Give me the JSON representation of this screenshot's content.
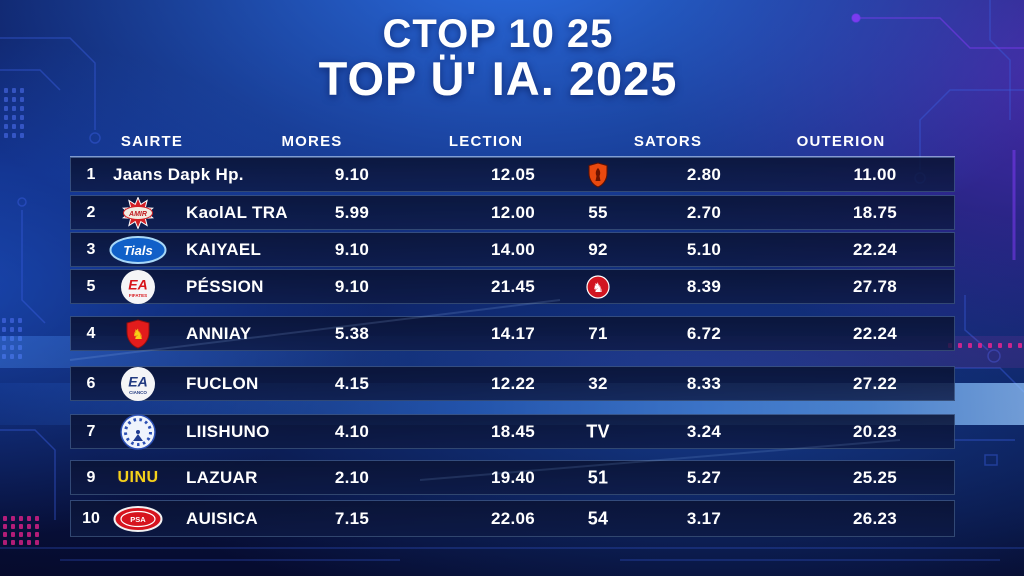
{
  "title": {
    "line1": "CTOP 10 25",
    "line2": "TOP Ü' IA. 2025"
  },
  "chart_data": {
    "type": "table",
    "title": "CTOP 10 25 — TOP Ü' IA. 2025",
    "columns": [
      "SAIRTE",
      "MORES",
      "LECTION",
      "SATORS",
      "OUTERION"
    ],
    "rows": [
      {
        "rank": "1",
        "logo": null,
        "name": "Jaans Dapk Hp.",
        "mores": "9.10",
        "lection": "12.05",
        "mid": {
          "icon": "red-shield-crest-icon"
        },
        "sators": "2.80",
        "outerion": "11.00"
      },
      {
        "rank": "2",
        "logo": {
          "icon": "red-star-badge-icon",
          "text": "AMIR"
        },
        "name": "KaolAL TRA",
        "mores": "5.99",
        "lection": "12.00",
        "mid": {
          "text": "55"
        },
        "sators": "2.70",
        "outerion": "18.75"
      },
      {
        "rank": "3",
        "logo": {
          "icon": "blue-oval-badge-icon",
          "text": "Tials"
        },
        "name": "KAIYAEL",
        "mores": "9.10",
        "lection": "14.00",
        "mid": {
          "text": "92"
        },
        "sators": "5.10",
        "outerion": "22.24"
      },
      {
        "rank": "5",
        "logo": {
          "icon": "ea-red-circle-icon",
          "text": "EA",
          "subtext": "FIFATES"
        },
        "name": "PÉSSION",
        "mores": "9.10",
        "lection": "21.45",
        "mid": {
          "icon": "red-circle-lion-icon"
        },
        "sators": "8.39",
        "outerion": "27.78"
      },
      {
        "rank": "4",
        "logo": {
          "icon": "red-shield-horse-icon",
          "text": "♞"
        },
        "name": "ANNIAY",
        "mores": "5.38",
        "lection": "14.17",
        "mid": {
          "text": "71"
        },
        "sators": "6.72",
        "outerion": "22.24"
      },
      {
        "rank": "6",
        "logo": {
          "icon": "ea-navy-circle-icon",
          "text": "EA",
          "subtext": "CIANCO"
        },
        "name": "FUCLON",
        "mores": "4.15",
        "lection": "12.22",
        "mid": {
          "text": "32"
        },
        "sators": "8.33",
        "outerion": "27.22"
      },
      {
        "rank": "7",
        "logo": {
          "icon": "gauge-crest-icon"
        },
        "name": "LIISHUNO",
        "mores": "4.10",
        "lection": "18.45",
        "mid": {
          "text": "TV",
          "bold": true
        },
        "sators": "3.24",
        "outerion": "20.23"
      },
      {
        "rank": "9",
        "logo": {
          "icon": "yellow-wordmark-icon",
          "text": "UINU"
        },
        "name": "LAZUAR",
        "mores": "2.10",
        "lection": "19.40",
        "mid": {
          "text": "51",
          "bold": true
        },
        "sators": "5.27",
        "outerion": "25.25"
      },
      {
        "rank": "10",
        "logo": {
          "icon": "red-oval-badge-icon",
          "text": "PSA"
        },
        "name": "AUISICA",
        "mores": "7.15",
        "lection": "22.06",
        "mid": {
          "text": "54",
          "bold": true
        },
        "sators": "3.17",
        "outerion": "26.23"
      }
    ]
  },
  "colors": {
    "bright_blue": "#1b5ad0",
    "dark_navy": "#0a1240",
    "magenta": "#e0218a",
    "purple": "#7b3bf0",
    "row_bg": "#0c1847",
    "text": "#ffffff"
  }
}
